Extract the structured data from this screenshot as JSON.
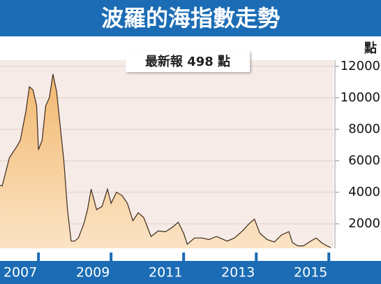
{
  "chart_data": {
    "type": "area",
    "title": "波羅的海指數走勢",
    "annotation": "最新報 498 點",
    "y_unit": "點",
    "x": [
      2006.94,
      2007.0,
      2007.2,
      2007.4,
      2007.5,
      2007.65,
      2007.75,
      2007.85,
      2007.95,
      2008.0,
      2008.1,
      2008.2,
      2008.3,
      2008.4,
      2008.5,
      2008.6,
      2008.7,
      2008.8,
      2008.9,
      2009.0,
      2009.1,
      2009.25,
      2009.35,
      2009.45,
      2009.6,
      2009.75,
      2009.9,
      2010.0,
      2010.15,
      2010.3,
      2010.45,
      2010.6,
      2010.75,
      2010.9,
      2011.0,
      2011.1,
      2011.3,
      2011.5,
      2011.7,
      2011.85,
      2012.0,
      2012.1,
      2012.3,
      2012.5,
      2012.7,
      2012.9,
      2013.0,
      2013.2,
      2013.4,
      2013.6,
      2013.8,
      2013.95,
      2014.1,
      2014.3,
      2014.5,
      2014.7,
      2014.9,
      2015.0,
      2015.15,
      2015.3,
      2015.5,
      2015.65,
      2015.8,
      2015.95,
      2016.05
    ],
    "values": [
      4450,
      4400,
      6200,
      6900,
      7300,
      9100,
      10700,
      10500,
      9500,
      6700,
      7300,
      9500,
      10000,
      11500,
      10400,
      8200,
      6000,
      2900,
      900,
      900,
      1100,
      2000,
      2900,
      4200,
      2900,
      3100,
      4200,
      3300,
      4000,
      3800,
      3300,
      2200,
      2700,
      2400,
      1800,
      1200,
      1550,
      1500,
      1800,
      2100,
      1400,
      700,
      1100,
      1100,
      1000,
      1200,
      1100,
      900,
      1100,
      1500,
      2000,
      2300,
      1400,
      1000,
      850,
      1300,
      1500,
      800,
      600,
      600,
      900,
      1100,
      800,
      600,
      498
    ],
    "color": "#f2b870",
    "line_color": "#3b2a1c",
    "xlim": [
      2006.94,
      2016.13
    ],
    "xticks": [
      {
        "value": 2007.5,
        "label": "2007"
      },
      {
        "value": 2009.5,
        "label": "2009"
      },
      {
        "value": 2011.5,
        "label": "2011"
      },
      {
        "value": 2013.5,
        "label": "2013"
      },
      {
        "value": 2015.5,
        "label": "2015"
      }
    ],
    "xtick_marks": [
      2008,
      2010,
      2012,
      2014,
      2016
    ],
    "ylim": [
      0,
      12300
    ],
    "yticks": [
      2000,
      4000,
      6000,
      8000,
      10000,
      12000
    ],
    "grid": true
  }
}
